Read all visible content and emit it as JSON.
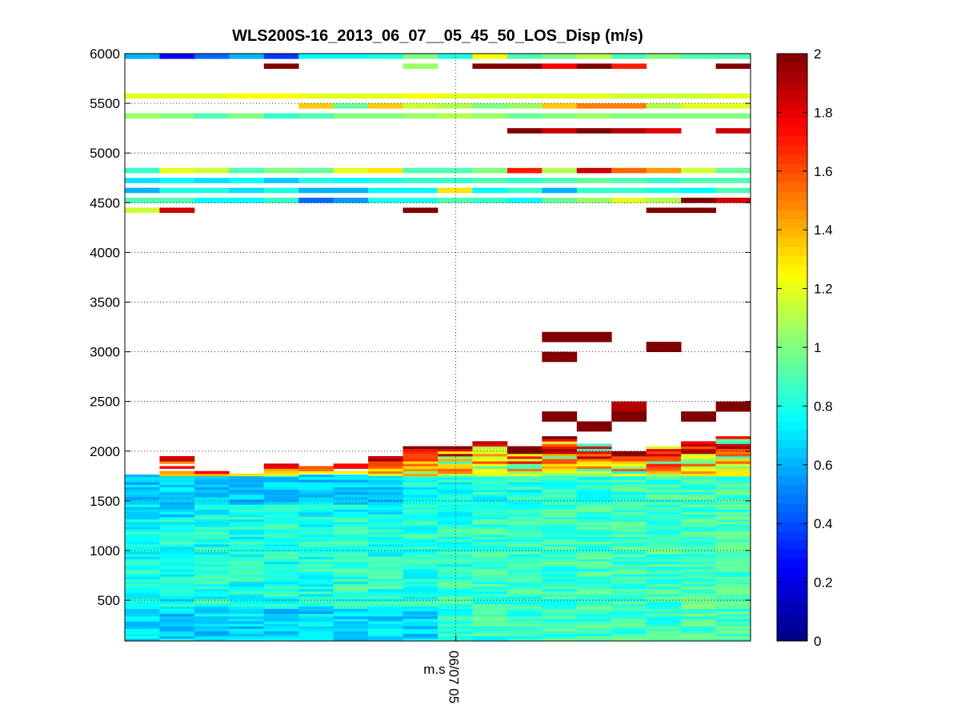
{
  "chart_data": {
    "type": "heatmap",
    "title": "WLS200S-16_2013_06_07__05_45_50_LOS_Disp (m/s)",
    "xlabel": "m.s",
    "x_tick_labels": [
      "06/07 05"
    ],
    "ylabel": "",
    "ylim": [
      90,
      6000
    ],
    "y_ticks": [
      500,
      1000,
      1500,
      2000,
      2500,
      3000,
      3500,
      4000,
      4500,
      5000,
      5500,
      6000
    ],
    "y_tick_labels": [
      "500",
      "1000",
      "1500",
      "2000",
      "2500",
      "3000",
      "3500",
      "4000",
      "4500",
      "5000",
      "5500",
      "6000"
    ],
    "grid": true,
    "colormap": "jet",
    "clim": [
      0,
      2
    ],
    "colorbar_ticks": [
      0,
      0.2,
      0.4,
      0.6,
      0.8,
      1,
      1.2,
      1.4,
      1.6,
      1.8,
      2
    ],
    "colorbar_tick_labels": [
      "0",
      "0.2",
      "0.4",
      "0.6",
      "0.8",
      "1",
      "1.2",
      "1.4",
      "1.6",
      "1.8",
      "2"
    ],
    "n_columns": 18,
    "row_height_m": 50,
    "top_block_rows": [
      {
        "y_low": 5950,
        "values": [
          0.6,
          0.25,
          0.45,
          0.6,
          0.35,
          0.75,
          0.75,
          0.8,
          1.0,
          0.8,
          1.25,
          0.9,
          1.0,
          1.1,
          0.9,
          1.0,
          0.9,
          0.9
        ]
      },
      {
        "y_low": 5850,
        "values": [
          null,
          null,
          null,
          null,
          2.0,
          null,
          null,
          null,
          1.05,
          null,
          2.0,
          2.0,
          1.75,
          2.0,
          1.7,
          null,
          null,
          2.0
        ]
      },
      {
        "y_low": 5550,
        "values": [
          1.2,
          1.2,
          1.2,
          1.25,
          1.25,
          1.2,
          1.2,
          1.2,
          1.25,
          1.2,
          1.2,
          1.2,
          1.2,
          1.2,
          1.15,
          1.15,
          1.15,
          1.2
        ]
      },
      {
        "y_low": 5450,
        "values": [
          null,
          null,
          null,
          null,
          null,
          1.35,
          0.95,
          1.35,
          1.15,
          1.1,
          1.0,
          1.05,
          1.35,
          1.5,
          1.5,
          1.1,
          1.2,
          1.2
        ]
      },
      {
        "y_low": 5350,
        "values": [
          1.05,
          1.0,
          0.9,
          1.0,
          0.85,
          0.9,
          1.0,
          1.0,
          1.05,
          1.1,
          1.05,
          0.95,
          1.0,
          1.05,
          1.0,
          1.0,
          1.0,
          1.0
        ]
      },
      {
        "y_low": 5200,
        "values": [
          null,
          null,
          null,
          null,
          null,
          null,
          null,
          null,
          null,
          null,
          null,
          2.0,
          1.85,
          2.0,
          1.9,
          1.8,
          null,
          1.85
        ]
      },
      {
        "y_low": 4800,
        "values": [
          0.85,
          1.2,
          1.15,
          0.9,
          1.0,
          0.95,
          1.2,
          1.3,
          0.9,
          0.9,
          1.0,
          1.7,
          1.1,
          1.85,
          1.55,
          1.45,
          1.15,
          0.95
        ]
      },
      {
        "y_low": 4700,
        "values": [
          0.7,
          0.75,
          0.7,
          0.75,
          0.65,
          0.8,
          0.75,
          0.8,
          0.85,
          0.85,
          0.9,
          0.85,
          0.9,
          0.95,
          0.9,
          0.85,
          0.9,
          0.9
        ]
      },
      {
        "y_low": 4600,
        "values": [
          0.6,
          0.8,
          0.8,
          0.7,
          0.8,
          0.6,
          0.6,
          0.75,
          0.75,
          1.3,
          0.75,
          0.85,
          0.6,
          0.85,
          0.85,
          0.8,
          0.75,
          0.9
        ]
      },
      {
        "y_low": 4500,
        "values": [
          0.9,
          0.9,
          0.75,
          0.75,
          0.85,
          0.45,
          0.55,
          0.8,
          0.8,
          0.9,
          0.85,
          0.75,
          0.95,
          1.05,
          1.2,
          1.1,
          2.0,
          1.85
        ]
      },
      {
        "y_low": 4400,
        "values": [
          1.15,
          1.85,
          null,
          null,
          null,
          null,
          null,
          null,
          2.0,
          null,
          null,
          null,
          null,
          null,
          null,
          2.0,
          2.0,
          null
        ]
      }
    ],
    "isolated_cells": [
      {
        "col": 12,
        "y_low": 3100,
        "value": 2.0
      },
      {
        "col": 13,
        "y_low": 3100,
        "value": 2.0
      },
      {
        "col": 15,
        "y_low": 3000,
        "value": 2.0
      },
      {
        "col": 12,
        "y_low": 2900,
        "value": 2.0
      },
      {
        "col": 14,
        "y_low": 2400,
        "value": 1.9
      },
      {
        "col": 17,
        "y_low": 2400,
        "value": 2.0
      },
      {
        "col": 12,
        "y_low": 2300,
        "value": 2.0
      },
      {
        "col": 14,
        "y_low": 2300,
        "value": 2.0
      },
      {
        "col": 16,
        "y_low": 2300,
        "value": 2.0
      },
      {
        "col": 13,
        "y_low": 2200,
        "value": 2.0
      }
    ],
    "cloud_top_m": [
      1850,
      1950,
      1780,
      1760,
      1870,
      1970,
      1870,
      1950,
      2050,
      2050,
      2100,
      2050,
      2150,
      2060,
      2000,
      2050,
      2100,
      2150
    ],
    "cloud_base_m": 1750,
    "boundary_layer_values_range": [
      0.55,
      1.1
    ],
    "boundary_layer_top_m": 1750
  }
}
